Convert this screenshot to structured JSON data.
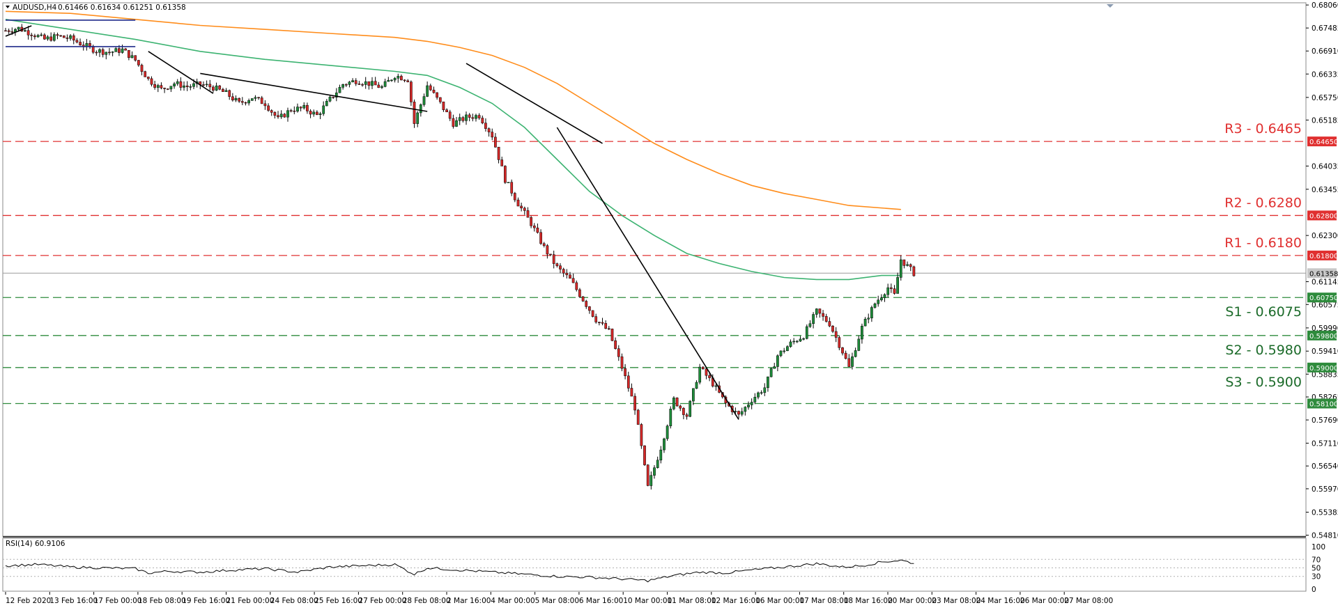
{
  "header": {
    "symbol": "AUDUSD,H4",
    "ohlc": "0.61466 0.61634 0.61251 0.61358"
  },
  "rsi": {
    "label": "RSI(14) 60.9106",
    "levels": [
      70,
      50,
      30
    ],
    "ticks": [
      "100",
      "70",
      "50",
      "30",
      "0"
    ]
  },
  "chart_data": {
    "type": "candlestick",
    "title": "",
    "ylim": [
      0.5482,
      0.6808
    ],
    "price_ticks": [
      "0.68060",
      "0.67485",
      "0.66910",
      "0.66335",
      "0.65750",
      "0.65185",
      "0.64650",
      "0.64035",
      "0.63455",
      "0.62800",
      "0.62300",
      "0.61800",
      "0.61358",
      "0.61145",
      "0.60750",
      "0.60575",
      "0.59990",
      "0.59800",
      "0.59410",
      "0.59000",
      "0.58835",
      "0.58265",
      "0.58100",
      "0.57690",
      "0.57110",
      "0.56540",
      "0.55970",
      "0.55385",
      "0.54810"
    ],
    "x_tick_labels": [
      "12 Feb 2020",
      "13 Feb 16:00",
      "17 Feb 00:00",
      "18 Feb 08:00",
      "19 Feb 16:00",
      "21 Feb 00:00",
      "24 Feb 08:00",
      "25 Feb 16:00",
      "27 Feb 00:00",
      "28 Feb 08:00",
      "2 Mar 16:00",
      "4 Mar 00:00",
      "5 Mar 08:00",
      "6 Mar 16:00",
      "10 Mar 00:00",
      "11 Mar 08:00",
      "12 Mar 16:00",
      "16 Mar 00:00",
      "17 Mar 08:00",
      "18 Mar 16:00",
      "20 Mar 00:00",
      "23 Mar 08:00",
      "24 Mar 16:00",
      "26 Mar 00:00",
      "27 Mar 08:00"
    ],
    "current_price": 0.61358,
    "resistance": [
      {
        "label": "R3 - 0.6465",
        "value": 0.6465,
        "tag": "0.64650"
      },
      {
        "label": "R2 - 0.6280",
        "value": 0.628,
        "tag": "0.62800"
      },
      {
        "label": "R1 - 0.6180",
        "value": 0.618,
        "tag": "0.61800"
      }
    ],
    "support": [
      {
        "label": "S1 - 0.6075",
        "value": 0.6075,
        "tag": "0.60750"
      },
      {
        "label": "S2 - 0.5980",
        "value": 0.598,
        "tag": "0.59800"
      },
      {
        "label": "S3 - 0.5900",
        "value": 0.59,
        "tag": "0.59000"
      },
      {
        "label": "",
        "value": 0.581,
        "tag": "0.58100"
      }
    ],
    "colors": {
      "bull": "#1e8c3a",
      "bear": "#d62828",
      "resistance": "#e03030",
      "support": "#2e8b3c",
      "ma_fast": "#3cb371",
      "ma_slow": "#ff8c1a",
      "trend": "#000000",
      "channel": "#1f2a8a",
      "rsi": "#000000"
    },
    "anchors": [
      [
        0,
        0.6742
      ],
      [
        4,
        0.6748
      ],
      [
        8,
        0.6735
      ],
      [
        12,
        0.672
      ],
      [
        16,
        0.6728
      ],
      [
        20,
        0.6722
      ],
      [
        24,
        0.6706
      ],
      [
        28,
        0.6692
      ],
      [
        32,
        0.6688
      ],
      [
        36,
        0.6694
      ],
      [
        40,
        0.6668
      ],
      [
        44,
        0.662
      ],
      [
        48,
        0.6595
      ],
      [
        52,
        0.661
      ],
      [
        56,
        0.6602
      ],
      [
        60,
        0.6608
      ],
      [
        64,
        0.66
      ],
      [
        68,
        0.6585
      ],
      [
        72,
        0.656
      ],
      [
        76,
        0.6575
      ],
      [
        80,
        0.656
      ],
      [
        84,
        0.652
      ],
      [
        88,
        0.6545
      ],
      [
        92,
        0.6548
      ],
      [
        96,
        0.653
      ],
      [
        100,
        0.657
      ],
      [
        104,
        0.6608
      ],
      [
        108,
        0.6617
      ],
      [
        112,
        0.661
      ],
      [
        116,
        0.66
      ],
      [
        120,
        0.663
      ],
      [
        124,
        0.662
      ],
      [
        126,
        0.651
      ],
      [
        130,
        0.6605
      ],
      [
        134,
        0.656
      ],
      [
        138,
        0.651
      ],
      [
        142,
        0.6525
      ],
      [
        146,
        0.653
      ],
      [
        150,
        0.648
      ],
      [
        154,
        0.637
      ],
      [
        158,
        0.631
      ],
      [
        162,
        0.626
      ],
      [
        166,
        0.62
      ],
      [
        170,
        0.615
      ],
      [
        174,
        0.612
      ],
      [
        178,
        0.607
      ],
      [
        182,
        0.602
      ],
      [
        186,
        0.599
      ],
      [
        190,
        0.59
      ],
      [
        194,
        0.58
      ],
      [
        198,
        0.56
      ],
      [
        202,
        0.57
      ],
      [
        206,
        0.582
      ],
      [
        210,
        0.578
      ],
      [
        214,
        0.59
      ],
      [
        218,
        0.586
      ],
      [
        222,
        0.581
      ],
      [
        226,
        0.578
      ],
      [
        230,
        0.582
      ],
      [
        234,
        0.585
      ],
      [
        238,
        0.593
      ],
      [
        242,
        0.596
      ],
      [
        246,
        0.598
      ],
      [
        250,
        0.604
      ],
      [
        254,
        0.601
      ],
      [
        258,
        0.594
      ],
      [
        260,
        0.59
      ],
      [
        264,
        0.6
      ],
      [
        268,
        0.606
      ],
      [
        272,
        0.61
      ],
      [
        274,
        0.608
      ],
      [
        276,
        0.617
      ],
      [
        280,
        0.6136
      ]
    ],
    "ma_fast": [
      [
        0,
        0.677
      ],
      [
        20,
        0.6745
      ],
      [
        40,
        0.672
      ],
      [
        60,
        0.669
      ],
      [
        80,
        0.667
      ],
      [
        100,
        0.6655
      ],
      [
        120,
        0.664
      ],
      [
        130,
        0.663
      ],
      [
        140,
        0.66
      ],
      [
        150,
        0.656
      ],
      [
        160,
        0.65
      ],
      [
        170,
        0.642
      ],
      [
        180,
        0.634
      ],
      [
        190,
        0.628
      ],
      [
        200,
        0.623
      ],
      [
        210,
        0.6185
      ],
      [
        220,
        0.616
      ],
      [
        230,
        0.614
      ],
      [
        240,
        0.6125
      ],
      [
        250,
        0.612
      ],
      [
        260,
        0.612
      ],
      [
        270,
        0.613
      ],
      [
        276,
        0.613
      ]
    ],
    "ma_slow": [
      [
        0,
        0.679
      ],
      [
        20,
        0.6785
      ],
      [
        40,
        0.677
      ],
      [
        60,
        0.6755
      ],
      [
        80,
        0.6745
      ],
      [
        100,
        0.6735
      ],
      [
        120,
        0.6725
      ],
      [
        130,
        0.6715
      ],
      [
        140,
        0.67
      ],
      [
        150,
        0.668
      ],
      [
        160,
        0.665
      ],
      [
        170,
        0.661
      ],
      [
        180,
        0.656
      ],
      [
        190,
        0.651
      ],
      [
        200,
        0.646
      ],
      [
        210,
        0.642
      ],
      [
        220,
        0.6385
      ],
      [
        230,
        0.6355
      ],
      [
        240,
        0.6335
      ],
      [
        250,
        0.632
      ],
      [
        260,
        0.6305
      ],
      [
        276,
        0.6295
      ]
    ],
    "trendlines": [
      [
        [
          0,
          0.6728
        ],
        [
          8,
          0.6754
        ]
      ],
      [
        [
          44,
          0.669
        ],
        [
          64,
          0.6585
        ]
      ],
      [
        [
          60,
          0.6635
        ],
        [
          130,
          0.654
        ]
      ],
      [
        [
          142,
          0.666
        ],
        [
          184,
          0.646
        ]
      ],
      [
        [
          170,
          0.65
        ],
        [
          226,
          0.577
        ]
      ]
    ],
    "channel_lines": [
      [
        [
          0,
          0.6768
        ],
        [
          40,
          0.6768
        ]
      ],
      [
        [
          0,
          0.6702
        ],
        [
          40,
          0.6702
        ]
      ]
    ],
    "rsi_values": [
      [
        0,
        55
      ],
      [
        10,
        58
      ],
      [
        20,
        52
      ],
      [
        30,
        50
      ],
      [
        40,
        48
      ],
      [
        44,
        38
      ],
      [
        50,
        42
      ],
      [
        60,
        40
      ],
      [
        70,
        45
      ],
      [
        80,
        48
      ],
      [
        90,
        40
      ],
      [
        100,
        52
      ],
      [
        110,
        55
      ],
      [
        120,
        58
      ],
      [
        126,
        35
      ],
      [
        130,
        50
      ],
      [
        140,
        45
      ],
      [
        150,
        40
      ],
      [
        160,
        35
      ],
      [
        170,
        30
      ],
      [
        180,
        28
      ],
      [
        190,
        24
      ],
      [
        198,
        20
      ],
      [
        206,
        32
      ],
      [
        214,
        40
      ],
      [
        222,
        38
      ],
      [
        230,
        45
      ],
      [
        240,
        52
      ],
      [
        250,
        60
      ],
      [
        258,
        52
      ],
      [
        264,
        55
      ],
      [
        270,
        64
      ],
      [
        276,
        68
      ],
      [
        280,
        61
      ]
    ]
  }
}
